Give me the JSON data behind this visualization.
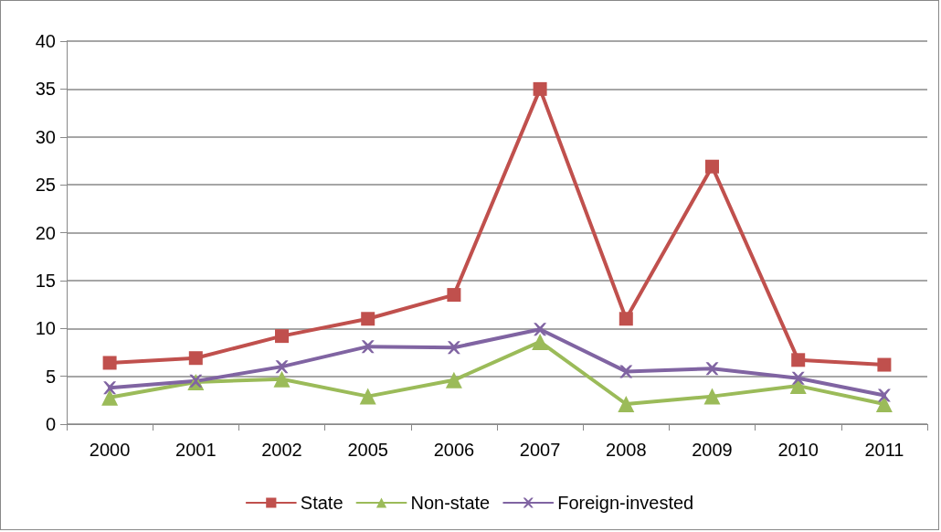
{
  "chart_data": {
    "type": "line",
    "categories": [
      "2000",
      "2001",
      "2002",
      "2005",
      "2006",
      "2007",
      "2008",
      "2009",
      "2010",
      "2011"
    ],
    "series": [
      {
        "name": "State",
        "color": "#c0504d",
        "marker": "square",
        "values": [
          6.4,
          6.9,
          9.2,
          11.0,
          13.5,
          35.0,
          11.0,
          26.9,
          6.7,
          6.2
        ]
      },
      {
        "name": "Non-state",
        "color": "#9bbb59",
        "marker": "triangle",
        "values": [
          2.8,
          4.4,
          4.7,
          2.9,
          4.6,
          8.6,
          2.1,
          2.9,
          4.0,
          2.1
        ]
      },
      {
        "name": "Foreign-invested",
        "color": "#8064a2",
        "marker": "cross",
        "values": [
          3.8,
          4.5,
          6.0,
          8.1,
          8.0,
          9.9,
          5.5,
          5.8,
          4.8,
          3.0
        ]
      }
    ],
    "ylim": [
      0,
      40
    ],
    "yticks": [
      0,
      5,
      10,
      15,
      20,
      25,
      30,
      35,
      40
    ],
    "grid": "y",
    "legend": "bottom",
    "line_style": "solid"
  }
}
